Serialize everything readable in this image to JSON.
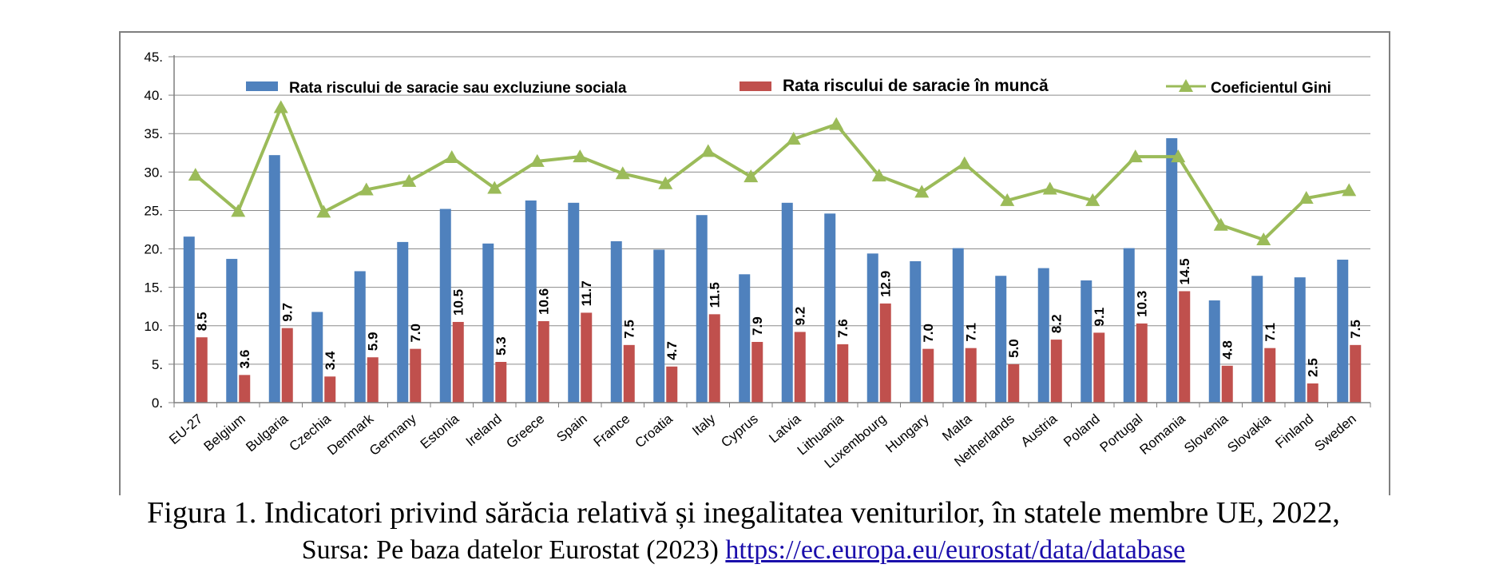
{
  "caption": {
    "line1": "Figura 1. Indicatori privind sărăcia relativă și inegalitatea veniturilor, în statele membre UE, 2022,",
    "source_prefix": "Sursa: Pe baza datelor Eurostat (2023) ",
    "source_link": "https://ec.europa.eu/eurostat/data/database"
  },
  "chart_data": {
    "type": "bar",
    "categories": [
      "EU-27",
      "Belgium",
      "Bulgaria",
      "Czechia",
      "Denmark",
      "Germany",
      "Estonia",
      "Ireland",
      "Greece",
      "Spain",
      "France",
      "Croatia",
      "Italy",
      "Cyprus",
      "Latvia",
      "Lithuania",
      "Luxembourg",
      "Hungary",
      "Malta",
      "Netherlands",
      "Austria",
      "Poland",
      "Portugal",
      "Romania",
      "Slovenia",
      "Slovakia",
      "Finland",
      "Sweden"
    ],
    "series": [
      {
        "name": "Rata riscului de saracie sau excluziune sociala",
        "type": "bar",
        "color": "#4f81bd",
        "values": [
          21.6,
          18.7,
          32.2,
          11.8,
          17.1,
          20.9,
          25.2,
          20.7,
          26.3,
          26.0,
          21.0,
          19.9,
          24.4,
          16.7,
          26.0,
          24.6,
          19.4,
          18.4,
          20.1,
          16.5,
          17.5,
          15.9,
          20.1,
          34.4,
          13.3,
          16.5,
          16.3,
          18.6
        ]
      },
      {
        "name": "Rata riscului de saracie în muncă",
        "type": "bar",
        "color": "#c0504d",
        "values": [
          8.5,
          3.6,
          9.7,
          3.4,
          5.9,
          7.0,
          10.5,
          5.3,
          10.6,
          11.7,
          7.5,
          4.7,
          11.5,
          7.9,
          9.2,
          7.6,
          12.9,
          7.0,
          7.1,
          5.0,
          8.2,
          9.1,
          10.3,
          14.5,
          4.8,
          7.1,
          2.5,
          7.5
        ],
        "data_labels": [
          "8.5",
          "3.6",
          "9.7",
          "3.4",
          "5.9",
          "7.0",
          "10.5",
          "5.3",
          "10.6",
          "11.7",
          "7.5",
          "4.7",
          "11.5",
          "7.9",
          "9.2",
          "7.6",
          "12.9",
          "7.0",
          "7.1",
          "5.0",
          "8.2",
          "9.1",
          "10.3",
          "14.5",
          "4.8",
          "7.1",
          "2.5",
          "7.5"
        ]
      },
      {
        "name": "Coeficientul Gini",
        "type": "line",
        "color": "#9bbb59",
        "values": [
          29.6,
          24.9,
          38.4,
          24.8,
          27.7,
          28.8,
          31.9,
          27.9,
          31.4,
          32.0,
          29.8,
          28.5,
          32.7,
          29.4,
          34.3,
          36.2,
          29.5,
          27.4,
          31.1,
          26.3,
          27.8,
          26.3,
          32.0,
          32.0,
          23.1,
          21.2,
          26.6,
          27.6
        ]
      }
    ],
    "ylim": [
      0,
      45
    ],
    "yticks": [
      0,
      5,
      10,
      15,
      20,
      25,
      30,
      35,
      40,
      45
    ],
    "ytick_labels": [
      "0.",
      "5.",
      "10.",
      "15.",
      "20.",
      "25.",
      "30.",
      "35.",
      "40.",
      "45."
    ],
    "grid": true,
    "legend_position": "top"
  }
}
